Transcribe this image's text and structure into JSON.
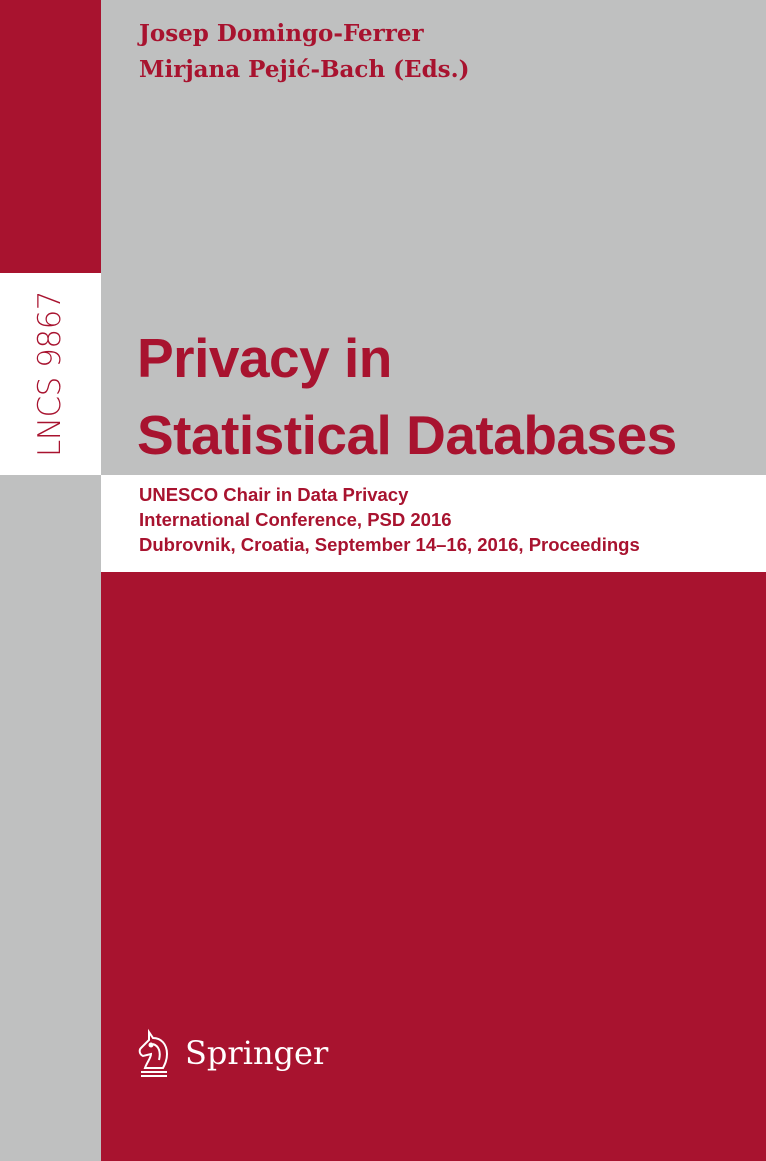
{
  "cover": {
    "series_label": "LNCS 9867",
    "authors": [
      "Josep Domingo-Ferrer",
      "Mirjana Pejić-Bach (Eds.)"
    ],
    "title_lines": [
      "Privacy in",
      "Statistical Databases"
    ],
    "subtitle_lines": [
      "UNESCO Chair in Data Privacy",
      "International Conference, PSD 2016",
      "Dubrovnik, Croatia, September 14–16, 2016, Proceedings"
    ],
    "publisher": "Springer",
    "publisher_icon": "springer-horse-icon",
    "colors": {
      "red": "#a8132f",
      "grey": "#bfc0c0",
      "white": "#ffffff"
    }
  }
}
